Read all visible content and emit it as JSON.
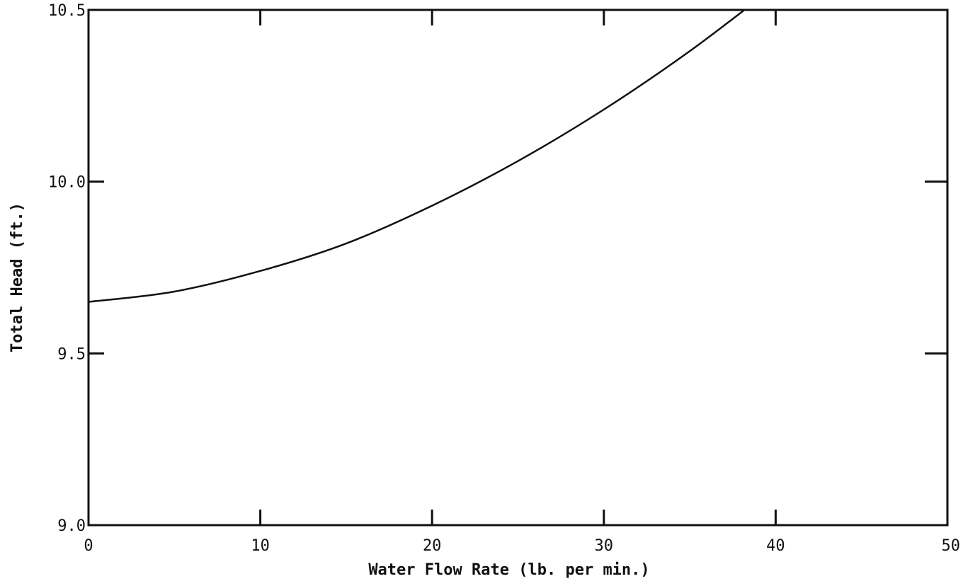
{
  "chart_data": {
    "type": "line",
    "title": "",
    "xlabel": "Water Flow Rate (lb. per min.)",
    "ylabel": "Total Head (ft.)",
    "xlim": [
      0,
      50
    ],
    "ylim": [
      9.0,
      10.5
    ],
    "x_ticks": [
      0,
      10,
      20,
      30,
      40,
      50
    ],
    "x_tick_labels": [
      "0",
      "10",
      "20",
      "30",
      "40",
      "50"
    ],
    "y_ticks": [
      9.0,
      9.5,
      10.0,
      10.5
    ],
    "y_tick_labels": [
      "9.0",
      "9.5",
      "10.0",
      "10.5"
    ],
    "grid": false,
    "legend": "none",
    "series": [
      {
        "x": [
          0,
          5,
          10,
          15,
          20,
          25,
          30,
          35,
          40
        ],
        "y": [
          9.65,
          9.68,
          9.74,
          9.82,
          9.93,
          10.06,
          10.21,
          10.38,
          10.57
        ]
      }
    ]
  }
}
